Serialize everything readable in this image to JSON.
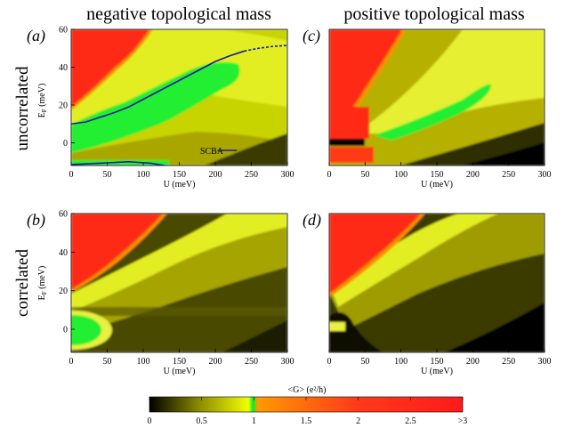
{
  "column_titles": [
    "negative topological mass",
    "positive topological mass"
  ],
  "row_titles": [
    "uncorrelated",
    "correlated"
  ],
  "chart_data": [
    {
      "type": "heatmap",
      "panel_label": "(a)",
      "xlabel": "U (meV)",
      "ylabel": "E_F (meV)",
      "xlim": [
        0,
        300
      ],
      "ylim": [
        -12,
        60
      ],
      "xticks": [
        0,
        50,
        100,
        150,
        200,
        250,
        300
      ],
      "yticks": [
        0,
        20,
        40,
        60
      ],
      "annotation": "SCBA",
      "series": [
        {
          "name": "SCBA",
          "style": "solid-blue",
          "x": [
            0,
            20,
            40,
            60,
            80,
            100,
            120,
            140,
            160,
            180,
            200,
            220,
            240
          ],
          "y": [
            10,
            11,
            13.5,
            16,
            19,
            23,
            27,
            31,
            35,
            39,
            43,
            46,
            48.5
          ]
        },
        {
          "name": "SCBA-dashed",
          "style": "dashed-blue",
          "x": [
            240,
            260,
            280,
            300
          ],
          "y": [
            48.5,
            50,
            51,
            51.5
          ]
        },
        {
          "name": "SCBA-lower",
          "style": "solid-blue",
          "x": [
            0,
            40,
            80,
            110,
            130
          ],
          "y": [
            -11.5,
            -10.8,
            -10,
            -10.8,
            -12
          ]
        }
      ]
    },
    {
      "type": "heatmap",
      "panel_label": "(c)",
      "xlabel": "U (meV)",
      "ylabel": "",
      "xlim": [
        0,
        300
      ],
      "ylim": [
        -12,
        60
      ],
      "xticks": [
        0,
        50,
        100,
        150,
        200,
        250,
        300
      ],
      "yticks": []
    },
    {
      "type": "heatmap",
      "panel_label": "(b)",
      "xlabel": "U (meV)",
      "ylabel": "E_F (meV)",
      "xlim": [
        0,
        300
      ],
      "ylim": [
        -12,
        60
      ],
      "xticks": [
        0,
        50,
        100,
        150,
        200,
        250,
        300
      ],
      "yticks": [
        0,
        20,
        40,
        60
      ]
    },
    {
      "type": "heatmap",
      "panel_label": "(d)",
      "xlabel": "U (meV)",
      "ylabel": "",
      "xlim": [
        0,
        300
      ],
      "ylim": [
        -12,
        60
      ],
      "xticks": [
        0,
        50,
        100,
        150,
        200,
        250,
        300
      ],
      "yticks": []
    }
  ],
  "colorbar": {
    "label": "<G> (e²/h)",
    "ticks": [
      "0",
      "0.5",
      "1",
      "1.5",
      "2",
      "2.5",
      ">3"
    ],
    "range": [
      0,
      3
    ],
    "stops": [
      {
        "value": 0,
        "color": "#000000"
      },
      {
        "value": 0.5,
        "color": "#8c8c00"
      },
      {
        "value": 0.95,
        "color": "#f2ff00"
      },
      {
        "value": 1.0,
        "color": "#00ee33"
      },
      {
        "value": 1.05,
        "color": "#ff9a00"
      },
      {
        "value": 2.0,
        "color": "#ff3b1a"
      },
      {
        "value": 3.0,
        "color": "#ff1a1a"
      }
    ]
  },
  "colors": {
    "curve": "#1a1aa6",
    "axis": "#000000"
  }
}
